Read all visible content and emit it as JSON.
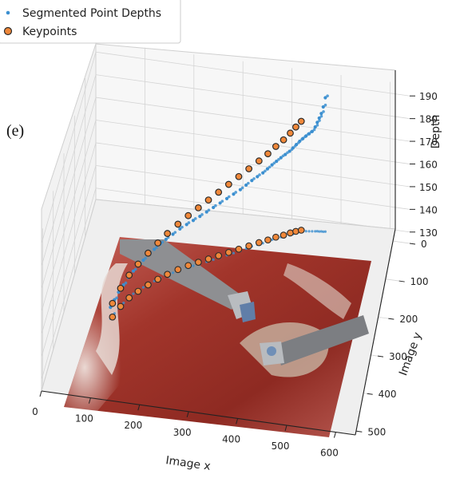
{
  "panel_label": "(e)",
  "colors": {
    "depth_points": "#3b8fd0",
    "keypoint_fill": "#f0883a",
    "keypoint_edge": "#2a2a2a",
    "grid": "#d4d4d4",
    "axis": "#222222",
    "pane": "#f7f7f7"
  },
  "chart_data": {
    "type": "scatter",
    "projection": "3d",
    "xlabel": "Image x",
    "ylabel": "Image y",
    "zlabel": "Depth",
    "x_ticks": [
      "0",
      "100",
      "200",
      "300",
      "400",
      "500",
      "600"
    ],
    "y_ticks": [
      "0",
      "100",
      "200",
      "300",
      "400",
      "500"
    ],
    "z_ticks": [
      "130",
      "140",
      "150",
      "160",
      "170",
      "180",
      "190"
    ],
    "xlim": [
      0,
      640
    ],
    "ylim": [
      0,
      510
    ],
    "zlim": [
      125,
      195
    ],
    "grid": true,
    "legend_position": "top-left",
    "floor_image": "surgical endoscopic scene with two instruments",
    "series": [
      {
        "name": "Segmented Point Depths",
        "marker": "small dot",
        "x": [
          95,
          100,
          105,
          112,
          118,
          126,
          134,
          142,
          150,
          160,
          170,
          180,
          192,
          204,
          216,
          228,
          240,
          252,
          264,
          276,
          288,
          300,
          312,
          322,
          332,
          342,
          352,
          360,
          368,
          376,
          384,
          392,
          400,
          406,
          412,
          418,
          424,
          430,
          436,
          442,
          448,
          452,
          456,
          460,
          464,
          468
        ],
        "y": [
          300,
          285,
          270,
          255,
          240,
          228,
          218,
          208,
          198,
          188,
          178,
          170,
          160,
          150,
          142,
          135,
          128,
          120,
          112,
          104,
          96,
          88,
          80,
          72,
          64,
          58,
          52,
          46,
          40,
          35,
          30,
          26,
          22,
          18,
          14,
          10,
          8,
          6,
          5,
          4,
          3,
          2,
          2,
          1,
          1,
          0
        ],
        "z": [
          130,
          131,
          132,
          133,
          134,
          135,
          136,
          137,
          138,
          139,
          140,
          141,
          142,
          143,
          144,
          145,
          146,
          147,
          148,
          149,
          150,
          151,
          152,
          153,
          154,
          155,
          156,
          157,
          158,
          159,
          160,
          161,
          162,
          163,
          164,
          165,
          166,
          167,
          168,
          169,
          171,
          173,
          175,
          177,
          180,
          184
        ]
      },
      {
        "name": "Keypoints",
        "marker": "circle",
        "x": [
          98,
          108,
          120,
          134,
          150,
          166,
          182,
          200,
          218,
          236,
          254,
          272,
          290,
          308,
          326,
          344,
          360,
          374,
          388,
          400,
          410,
          420
        ],
        "y": [
          295,
          265,
          240,
          220,
          200,
          182,
          166,
          150,
          136,
          124,
          112,
          100,
          88,
          76,
          64,
          52,
          42,
          32,
          24,
          16,
          10,
          5
        ],
        "z": [
          131,
          133,
          135,
          137,
          139,
          141,
          143,
          145,
          147,
          149,
          151,
          153,
          155,
          157,
          159,
          161,
          163,
          165,
          167,
          169,
          171,
          173
        ]
      }
    ]
  }
}
